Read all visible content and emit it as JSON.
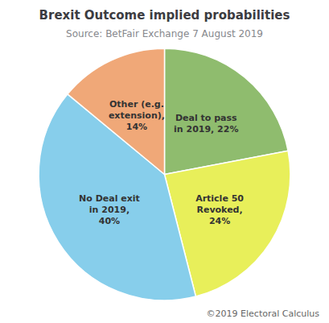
{
  "chart_data": {
    "type": "pie",
    "title": "Brexit Outcome implied probabilities",
    "subtitle": "Source: BetFair Exchange 7 August 2019",
    "annotations": [
      "©2019 Electoral Calculus"
    ],
    "categories": [
      "Deal to pass\nin 2019, 22%",
      "Article 50\nRevoked,\n24%",
      "No Deal exit\nin 2019,\n40%",
      "Other (e.g.\nextension),\n14%"
    ],
    "values": [
      22,
      24,
      40,
      14
    ],
    "colors": [
      "#8fbc6e",
      "#e8ef5a",
      "#87ceeb",
      "#f0a878"
    ],
    "data_labels": true
  }
}
